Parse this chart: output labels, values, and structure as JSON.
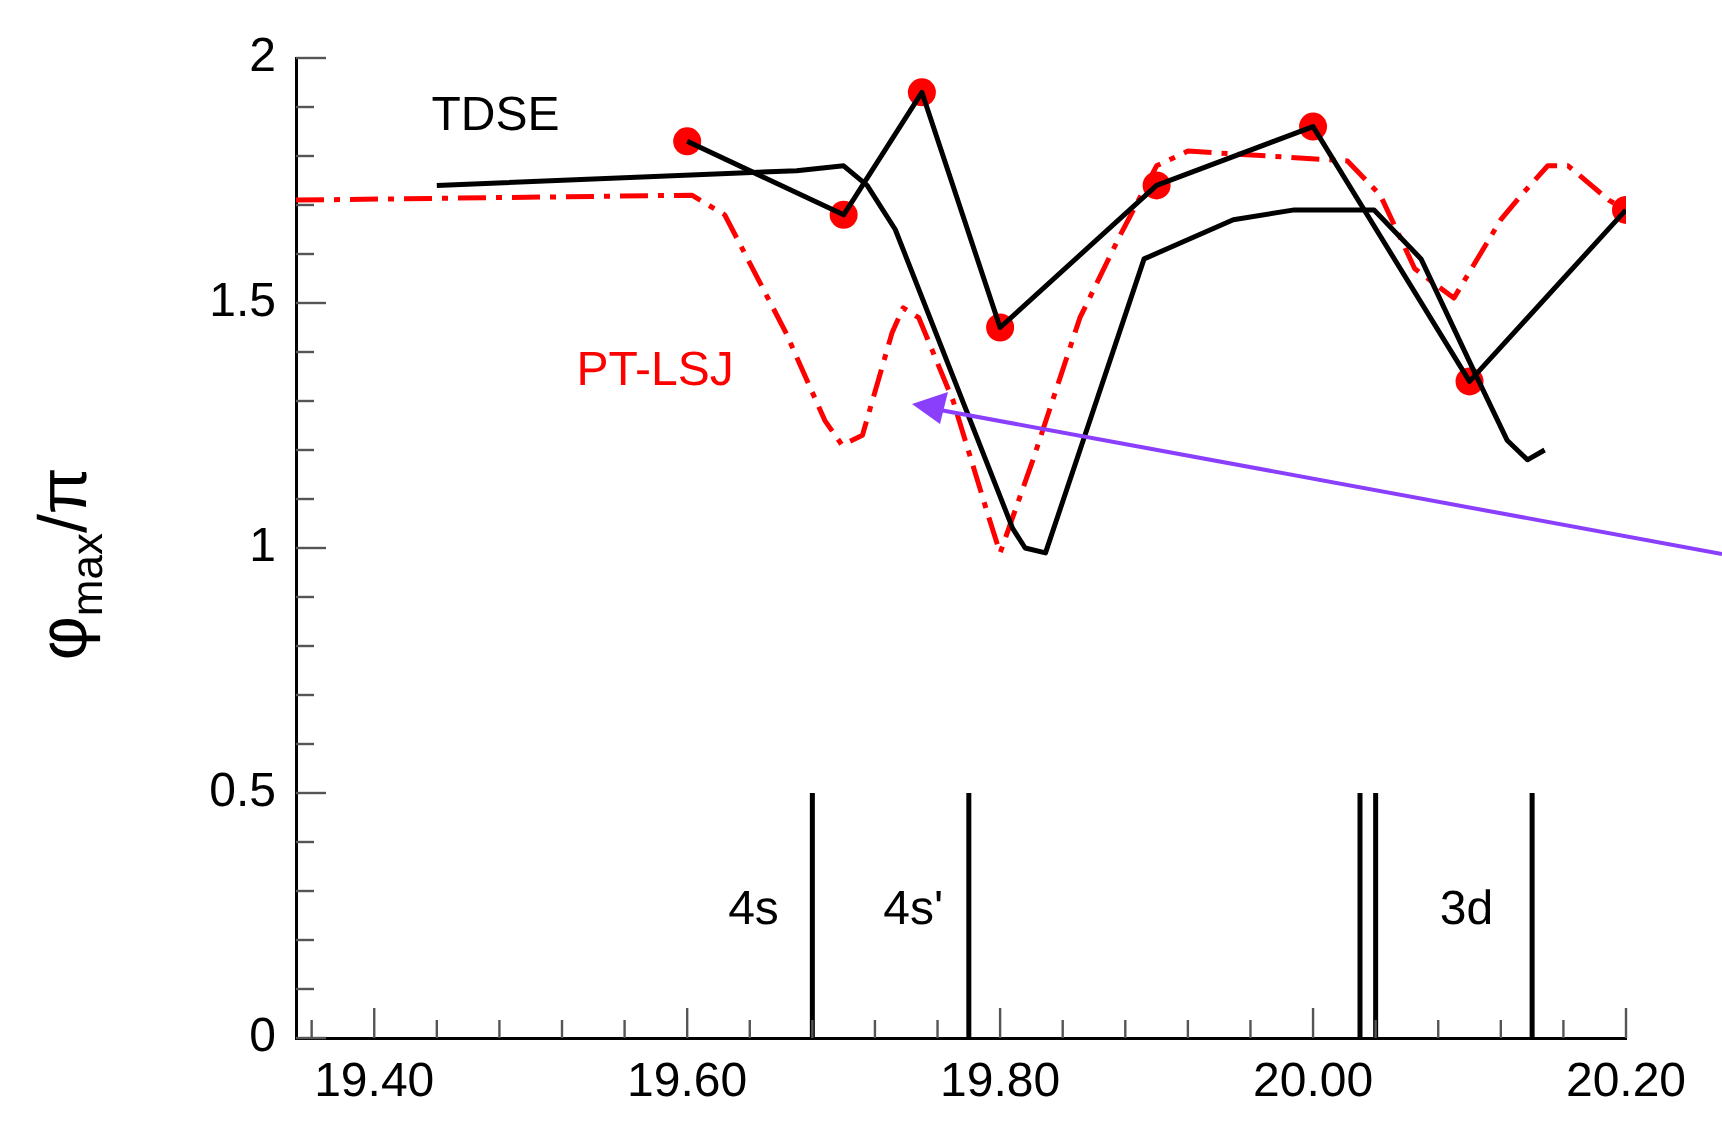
{
  "chart_data": {
    "type": "line",
    "ylabel": "φ$_{max}$/π",
    "xlim": [
      19.35,
      20.2
    ],
    "xticks": [
      {
        "value": 19.36,
        "label": null
      },
      {
        "value": 19.4,
        "label": "19.40"
      },
      {
        "value": 19.44,
        "label": null
      },
      {
        "value": 19.48,
        "label": null
      },
      {
        "value": 19.52,
        "label": null
      },
      {
        "value": 19.56,
        "label": null
      },
      {
        "value": 19.6,
        "label": "19.60"
      },
      {
        "value": 19.64,
        "label": null
      },
      {
        "value": 19.68,
        "label": null
      },
      {
        "value": 19.72,
        "label": null
      },
      {
        "value": 19.76,
        "label": null
      },
      {
        "value": 19.8,
        "label": "19.80"
      },
      {
        "value": 19.84,
        "label": null
      },
      {
        "value": 19.88,
        "label": null
      },
      {
        "value": 19.92,
        "label": null
      },
      {
        "value": 19.96,
        "label": null
      },
      {
        "value": 20.0,
        "label": "20.00"
      },
      {
        "value": 20.04,
        "label": null
      },
      {
        "value": 20.08,
        "label": null
      },
      {
        "value": 20.12,
        "label": null
      },
      {
        "value": 20.16,
        "label": null
      },
      {
        "value": 20.2,
        "label": "20.20"
      }
    ],
    "ylim": [
      0,
      2
    ],
    "yticks": [
      0,
      {
        "value": 0.1,
        "label": null
      },
      {
        "value": 0.2,
        "label": null
      },
      {
        "value": 0.3,
        "label": null
      },
      {
        "value": 0.4,
        "label": null
      },
      0.5,
      {
        "value": 0.6,
        "label": null
      },
      {
        "value": 0.7,
        "label": null
      },
      {
        "value": 0.8,
        "label": null
      },
      {
        "value": 0.9,
        "label": null
      },
      1,
      {
        "value": 1.1,
        "label": null
      },
      {
        "value": 1.2,
        "label": null
      },
      {
        "value": 1.3,
        "label": null
      },
      {
        "value": 1.4,
        "label": null
      },
      1.5,
      {
        "value": 1.6,
        "label": null
      },
      {
        "value": 1.7,
        "label": null
      },
      {
        "value": 1.8,
        "label": null
      },
      {
        "value": 1.9,
        "label": null
      },
      2
    ],
    "grid": false,
    "legend": false,
    "marker": "none",
    "series": [
      {
        "color": "#000000",
        "x": [
          19.68,
          19.68,
          null,
          19.78,
          19.78,
          null,
          20.03,
          20.03,
          null,
          20.04,
          20.04,
          null,
          20.14,
          20.14
        ],
        "values": [
          0,
          0.5,
          null,
          0,
          0.5,
          null,
          0,
          0.5,
          null,
          0,
          0.5,
          null,
          0,
          0.5
        ]
      },
      {
        "name": "TDSE",
        "color": "#000000",
        "line_style": "solid",
        "x": [
          19.44,
          19.67,
          19.7,
          19.715,
          19.733,
          19.808,
          19.816,
          19.829,
          19.892,
          19.949,
          19.988,
          20.039,
          20.069,
          20.103,
          20.124,
          20.137,
          20.148
        ],
        "values": [
          1.74,
          1.77,
          1.78,
          1.74,
          1.65,
          1.04,
          1.0,
          0.99,
          1.59,
          1.67,
          1.69,
          1.69,
          1.59,
          1.36,
          1.22,
          1.18,
          1.2
        ]
      },
      {
        "color": "#000000",
        "line_style": "solid",
        "x": [
          19.6,
          19.7,
          19.75,
          19.8,
          19.9,
          20.0,
          20.1,
          20.2
        ],
        "values": [
          1.83,
          1.68,
          1.93,
          1.45,
          1.74,
          1.86,
          1.34,
          1.69
        ]
      },
      {
        "type": "scatter",
        "color": "#ff0000",
        "marker": "circle",
        "x": [
          19.6,
          19.7,
          19.75,
          19.8,
          19.9,
          20.0,
          20.1,
          20.2
        ],
        "values": [
          1.83,
          1.68,
          1.93,
          1.45,
          1.74,
          1.86,
          1.34,
          1.69
        ]
      },
      {
        "name": "PT-LSJ",
        "color": "#ff0000",
        "line_style": "dashdot",
        "x": [
          19.35,
          19.603,
          19.624,
          19.663,
          19.688,
          19.699,
          19.712,
          19.731,
          19.738,
          19.748,
          19.77,
          19.793,
          19.8,
          19.821,
          19.851,
          19.877,
          19.9,
          19.92,
          20.022,
          20.043,
          20.065,
          20.09,
          20.12,
          20.133,
          20.15,
          20.163,
          20.189,
          20.2
        ],
        "values": [
          1.71,
          1.72,
          1.68,
          1.44,
          1.26,
          1.21,
          1.23,
          1.44,
          1.49,
          1.47,
          1.3,
          1.06,
          0.99,
          1.18,
          1.47,
          1.64,
          1.78,
          1.81,
          1.79,
          1.72,
          1.57,
          1.51,
          1.67,
          1.72,
          1.78,
          1.78,
          1.71,
          1.69
        ]
      }
    ],
    "annotations": [
      "4s",
      "4s'",
      "3d"
    ]
  }
}
